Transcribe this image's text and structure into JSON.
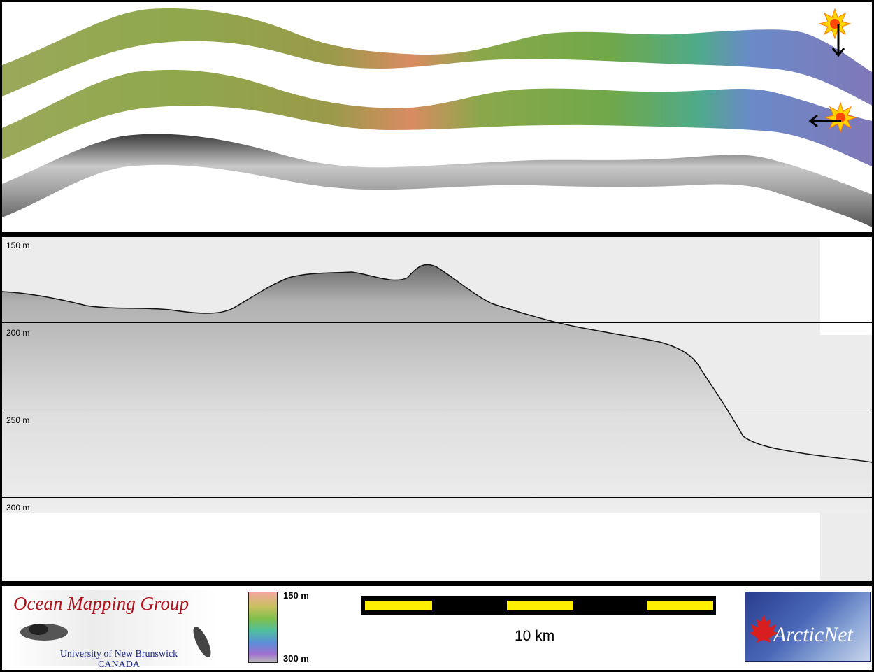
{
  "profile": {
    "depth_labels": [
      "150 m",
      "200 m",
      "250 m",
      "300 m"
    ]
  },
  "footer": {
    "omg_logo": {
      "title": "Ocean Mapping Group",
      "university_line1": "University of New Brunswick",
      "university_line2": "CANADA"
    },
    "colorbar": {
      "top_label": "150 m",
      "bottom_label": "300 m"
    },
    "scale": {
      "label": "10 km",
      "bar_color": "#ffef00"
    },
    "arcticnet_logo": {
      "text": "ArcticNet"
    }
  },
  "icons": {
    "illumination_1": "sun-icon",
    "illumination_2": "sun-icon",
    "arrow_1": "arrow-down-icon",
    "arrow_2": "arrow-left-icon"
  }
}
